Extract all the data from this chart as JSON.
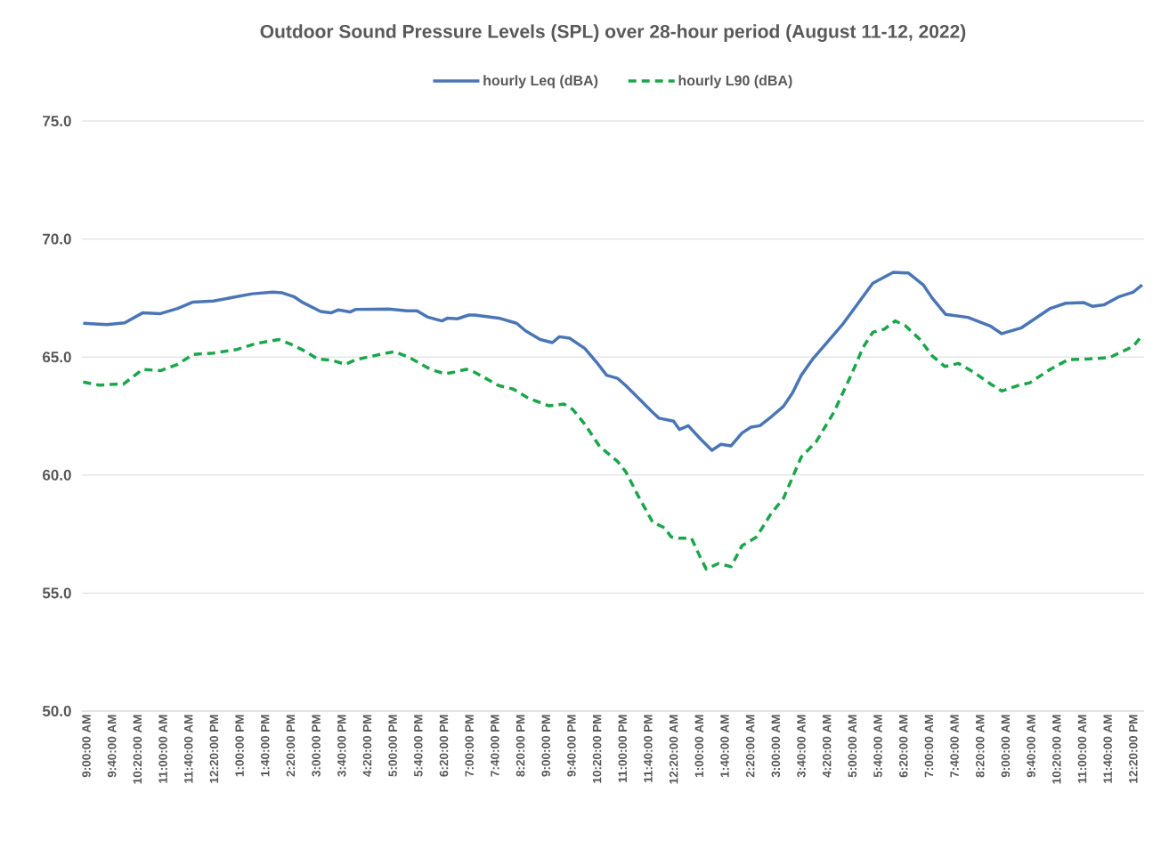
{
  "chart_data": {
    "type": "line",
    "title": "Outdoor Sound Pressure Levels (SPL) over 28-hour period (August 11-12, 2022)",
    "xlim": [
      "2022-08-11T08:53",
      "2022-08-12T12:37"
    ],
    "ylim": [
      50,
      75
    ],
    "yticks": [
      {
        "value": 50,
        "label": "50.0"
      },
      {
        "value": 55,
        "label": "55.0"
      },
      {
        "value": 60,
        "label": "60.0"
      },
      {
        "value": 65,
        "label": "65.0"
      },
      {
        "value": 70,
        "label": "70.0"
      },
      {
        "value": 75,
        "label": "75.0"
      }
    ],
    "xticks": [
      {
        "value": "2022-08-11T09:00",
        "label": "9:00:00 AM"
      },
      {
        "value": "2022-08-11T09:40",
        "label": "9:40:00 AM"
      },
      {
        "value": "2022-08-11T10:20",
        "label": "10:20:00 AM"
      },
      {
        "value": "2022-08-11T11:00",
        "label": "11:00:00 AM"
      },
      {
        "value": "2022-08-11T11:40",
        "label": "11:40:00 AM"
      },
      {
        "value": "2022-08-11T12:20",
        "label": "12:20:00 PM"
      },
      {
        "value": "2022-08-11T13:00",
        "label": "1:00:00 PM"
      },
      {
        "value": "2022-08-11T13:40",
        "label": "1:40:00 PM"
      },
      {
        "value": "2022-08-11T14:20",
        "label": "2:20:00 PM"
      },
      {
        "value": "2022-08-11T15:00",
        "label": "3:00:00 PM"
      },
      {
        "value": "2022-08-11T15:40",
        "label": "3:40:00 PM"
      },
      {
        "value": "2022-08-11T16:20",
        "label": "4:20:00 PM"
      },
      {
        "value": "2022-08-11T17:00",
        "label": "5:00:00 PM"
      },
      {
        "value": "2022-08-11T17:40",
        "label": "5:40:00 PM"
      },
      {
        "value": "2022-08-11T18:20",
        "label": "6:20:00 PM"
      },
      {
        "value": "2022-08-11T19:00",
        "label": "7:00:00 PM"
      },
      {
        "value": "2022-08-11T19:40",
        "label": "7:40:00 PM"
      },
      {
        "value": "2022-08-11T20:20",
        "label": "8:20:00 PM"
      },
      {
        "value": "2022-08-11T21:00",
        "label": "9:00:00 PM"
      },
      {
        "value": "2022-08-11T21:40",
        "label": "9:40:00 PM"
      },
      {
        "value": "2022-08-11T22:20",
        "label": "10:20:00 PM"
      },
      {
        "value": "2022-08-11T23:00",
        "label": "11:00:00 PM"
      },
      {
        "value": "2022-08-11T23:40",
        "label": "11:40:00 PM"
      },
      {
        "value": "2022-08-12T00:20",
        "label": "12:20:00 AM"
      },
      {
        "value": "2022-08-12T01:00",
        "label": "1:00:00 AM"
      },
      {
        "value": "2022-08-12T01:40",
        "label": "1:40:00 AM"
      },
      {
        "value": "2022-08-12T02:20",
        "label": "2:20:00 AM"
      },
      {
        "value": "2022-08-12T03:00",
        "label": "3:00:00 AM"
      },
      {
        "value": "2022-08-12T03:40",
        "label": "3:40:00 AM"
      },
      {
        "value": "2022-08-12T04:20",
        "label": "4:20:00 AM"
      },
      {
        "value": "2022-08-12T05:00",
        "label": "5:00:00 AM"
      },
      {
        "value": "2022-08-12T05:40",
        "label": "5:40:00 AM"
      },
      {
        "value": "2022-08-12T06:20",
        "label": "6:20:00 AM"
      },
      {
        "value": "2022-08-12T07:00",
        "label": "7:00:00 AM"
      },
      {
        "value": "2022-08-12T07:40",
        "label": "7:40:00 AM"
      },
      {
        "value": "2022-08-12T08:20",
        "label": "8:20:00 AM"
      },
      {
        "value": "2022-08-12T09:00",
        "label": "9:00:00 AM"
      },
      {
        "value": "2022-08-12T09:40",
        "label": "9:40:00 AM"
      },
      {
        "value": "2022-08-12T10:20",
        "label": "10:20:00 AM"
      },
      {
        "value": "2022-08-12T11:00",
        "label": "11:00:00 AM"
      },
      {
        "value": "2022-08-12T11:40",
        "label": "11:40:00 AM"
      },
      {
        "value": "2022-08-12T12:20",
        "label": "12:20:00 PM"
      }
    ],
    "grid": "y",
    "legend": "top",
    "marker": "none",
    "series": [
      {
        "name": "hourly Leq (dBA)",
        "color": "#4a76b5",
        "line_style": "solid",
        "x": [
          "2022-08-11T08:55",
          "2022-08-11T09:32",
          "2022-08-11T10:00",
          "2022-08-11T10:28",
          "2022-08-11T10:56",
          "2022-08-11T11:23",
          "2022-08-11T11:47",
          "2022-08-11T12:19",
          "2022-08-11T12:56",
          "2022-08-11T13:20",
          "2022-08-11T13:52",
          "2022-08-11T14:07",
          "2022-08-11T14:25",
          "2022-08-11T14:39",
          "2022-08-11T15:07",
          "2022-08-11T15:23",
          "2022-08-11T15:35",
          "2022-08-11T15:53",
          "2022-08-11T16:02",
          "2022-08-11T16:54",
          "2022-08-11T17:22",
          "2022-08-11T17:38",
          "2022-08-11T17:54",
          "2022-08-11T18:17",
          "2022-08-11T18:26",
          "2022-08-11T18:41",
          "2022-08-11T18:59",
          "2022-08-11T19:08",
          "2022-08-11T19:46",
          "2022-08-11T20:14",
          "2022-08-11T20:28",
          "2022-08-11T20:51",
          "2022-08-11T21:10",
          "2022-08-11T21:21",
          "2022-08-11T21:37",
          "2022-08-11T22:01",
          "2022-08-11T22:19",
          "2022-08-11T22:35",
          "2022-08-11T22:52",
          "2022-08-11T23:05",
          "2022-08-11T23:24",
          "2022-08-11T23:47",
          "2022-08-11T23:57",
          "2022-08-12T00:20",
          "2022-08-12T00:29",
          "2022-08-12T00:43",
          "2022-08-12T01:02",
          "2022-08-12T01:20",
          "2022-08-12T01:34",
          "2022-08-12T01:50",
          "2022-08-12T02:07",
          "2022-08-12T02:21",
          "2022-08-12T02:35",
          "2022-08-12T02:53",
          "2022-08-12T03:12",
          "2022-08-12T03:26",
          "2022-08-12T03:40",
          "2022-08-12T03:58",
          "2022-08-12T04:46",
          "2022-08-12T05:32",
          "2022-08-12T06:04",
          "2022-08-12T06:28",
          "2022-08-12T06:51",
          "2022-08-12T07:05",
          "2022-08-12T07:26",
          "2022-08-12T08:01",
          "2022-08-12T08:37",
          "2022-08-12T08:54",
          "2022-08-12T09:25",
          "2022-08-12T10:10",
          "2022-08-12T10:34",
          "2022-08-12T11:02",
          "2022-08-12T11:16",
          "2022-08-12T11:34",
          "2022-08-12T11:58",
          "2022-08-12T12:20",
          "2022-08-12T12:34"
        ],
        "values": [
          66.43,
          66.37,
          66.45,
          66.87,
          66.84,
          67.06,
          67.33,
          67.37,
          67.56,
          67.68,
          67.75,
          67.72,
          67.56,
          67.31,
          66.93,
          66.87,
          67.0,
          66.91,
          67.02,
          67.03,
          66.96,
          66.96,
          66.7,
          66.53,
          66.65,
          66.62,
          66.78,
          66.78,
          66.65,
          66.43,
          66.11,
          65.74,
          65.61,
          65.86,
          65.8,
          65.36,
          64.79,
          64.23,
          64.1,
          63.79,
          63.28,
          62.66,
          62.41,
          62.28,
          61.93,
          62.09,
          61.53,
          61.05,
          61.3,
          61.24,
          61.78,
          62.03,
          62.09,
          62.47,
          62.91,
          63.47,
          64.23,
          64.92,
          66.43,
          68.13,
          68.59,
          68.56,
          68.06,
          67.5,
          66.81,
          66.68,
          66.3,
          65.99,
          66.24,
          67.06,
          67.28,
          67.31,
          67.15,
          67.21,
          67.56,
          67.75,
          68.06
        ]
      },
      {
        "name": "hourly L90 (dBA)",
        "color": "#1aa64a",
        "line_style": "dashed",
        "x": [
          "2022-08-11T08:55",
          "2022-08-11T09:20",
          "2022-08-11T09:46",
          "2022-08-11T09:58",
          "2022-08-11T10:28",
          "2022-08-11T10:56",
          "2022-08-11T11:23",
          "2022-08-11T11:47",
          "2022-08-11T12:19",
          "2022-08-11T12:56",
          "2022-08-11T13:25",
          "2022-08-11T14:02",
          "2022-08-11T14:20",
          "2022-08-11T14:44",
          "2022-08-11T15:02",
          "2022-08-11T15:25",
          "2022-08-11T15:46",
          "2022-08-11T16:02",
          "2022-08-11T16:40",
          "2022-08-11T17:03",
          "2022-08-11T17:26",
          "2022-08-11T17:59",
          "2022-08-11T18:22",
          "2022-08-11T18:36",
          "2022-08-11T18:55",
          "2022-08-11T19:08",
          "2022-08-11T19:46",
          "2022-08-11T20:09",
          "2022-08-11T20:32",
          "2022-08-11T21:05",
          "2022-08-11T21:28",
          "2022-08-11T21:42",
          "2022-08-11T22:01",
          "2022-08-11T22:24",
          "2022-08-11T22:52",
          "2022-08-11T23:05",
          "2022-08-11T23:24",
          "2022-08-11T23:47",
          "2022-08-12T00:06",
          "2022-08-12T00:16",
          "2022-08-12T00:29",
          "2022-08-12T00:48",
          "2022-08-12T01:02",
          "2022-08-12T01:11",
          "2022-08-12T01:30",
          "2022-08-12T01:50",
          "2022-08-12T02:07",
          "2022-08-12T02:30",
          "2022-08-12T02:53",
          "2022-08-12T03:12",
          "2022-08-12T03:26",
          "2022-08-12T03:40",
          "2022-08-12T04:03",
          "2022-08-12T04:31",
          "2022-08-12T04:59",
          "2022-08-12T05:17",
          "2022-08-12T05:32",
          "2022-08-12T05:50",
          "2022-08-12T06:07",
          "2022-08-12T06:23",
          "2022-08-12T06:46",
          "2022-08-12T07:05",
          "2022-08-12T07:25",
          "2022-08-12T07:46",
          "2022-08-12T08:10",
          "2022-08-12T08:37",
          "2022-08-12T08:54",
          "2022-08-12T09:19",
          "2022-08-12T09:38",
          "2022-08-12T10:10",
          "2022-08-12T10:38",
          "2022-08-12T11:11",
          "2022-08-12T11:43",
          "2022-08-12T12:20",
          "2022-08-12T12:35"
        ],
        "values": [
          63.94,
          63.81,
          63.85,
          63.85,
          64.48,
          64.42,
          64.69,
          65.11,
          65.17,
          65.32,
          65.57,
          65.74,
          65.55,
          65.23,
          64.92,
          64.86,
          64.69,
          64.89,
          65.11,
          65.23,
          64.98,
          64.48,
          64.29,
          64.36,
          64.48,
          64.36,
          63.79,
          63.64,
          63.26,
          62.93,
          63.01,
          62.78,
          62.15,
          61.21,
          60.58,
          60.14,
          59.14,
          58.01,
          57.76,
          57.38,
          57.32,
          57.32,
          56.5,
          56.02,
          56.25,
          56.12,
          57.0,
          57.38,
          58.38,
          59.01,
          59.89,
          60.77,
          61.4,
          62.66,
          64.29,
          65.42,
          66.05,
          66.18,
          66.53,
          66.33,
          65.74,
          65.05,
          64.6,
          64.73,
          64.36,
          63.85,
          63.56,
          63.79,
          63.91,
          64.48,
          64.89,
          64.92,
          64.98,
          65.45,
          65.95
        ]
      }
    ]
  }
}
